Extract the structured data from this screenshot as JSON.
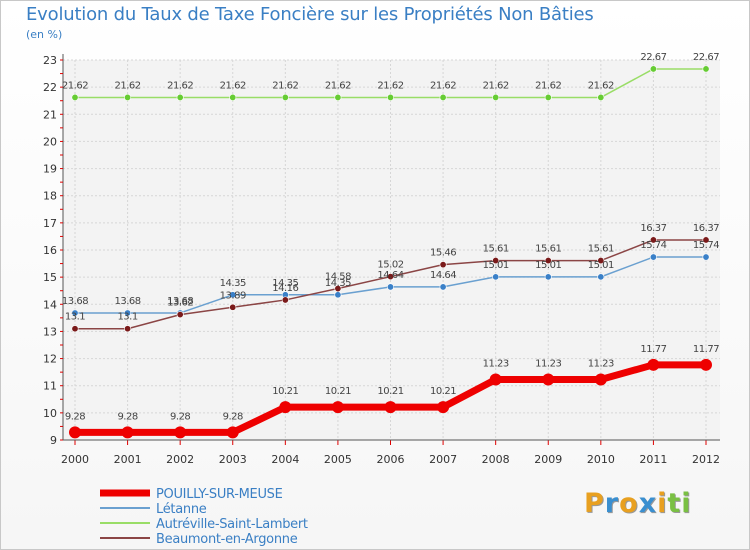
{
  "chart_data": {
    "type": "line",
    "title": "Evolution du Taux de Taxe Foncière sur les Propriétés Non Bâties",
    "ylabel": "(en %)",
    "xlabel": "",
    "ylim": [
      9,
      23
    ],
    "yticks": [
      "9",
      "10",
      "11",
      "12",
      "13",
      "14",
      "15",
      "16",
      "17",
      "18",
      "19",
      "20",
      "21",
      "22",
      "23"
    ],
    "categories": [
      "2000",
      "2001",
      "2002",
      "2003",
      "2004",
      "2005",
      "2006",
      "2007",
      "2008",
      "2009",
      "2010",
      "2011",
      "2012"
    ],
    "series": [
      {
        "name": "POUILLY-SUR-MEUSE",
        "color": "#ee0000",
        "markerColor": "#ee0000",
        "values": [
          9.28,
          9.28,
          9.28,
          9.28,
          10.21,
          10.21,
          10.21,
          10.21,
          11.23,
          11.23,
          11.23,
          11.77,
          11.77
        ],
        "labels": [
          "9.28",
          "9.28",
          "9.28",
          "9.28",
          "10.21",
          "10.21",
          "10.21",
          "10.21",
          "11.23",
          "11.23",
          "11.23",
          "11.77",
          "11.77"
        ]
      },
      {
        "name": "Létanne",
        "color": "#6aa0d0",
        "markerColor": "#3a80c8",
        "values": [
          13.68,
          13.68,
          13.68,
          14.35,
          14.35,
          14.35,
          14.64,
          14.64,
          15.01,
          15.01,
          15.01,
          15.74,
          15.74
        ],
        "labels": [
          "13.68",
          "13.68",
          "13.68",
          "14.35",
          "14.35",
          "14.35",
          "14.64",
          "14.64",
          "15.01",
          "15.01",
          "15.01",
          "15.74",
          "15.74"
        ]
      },
      {
        "name": "Autréville-Saint-Lambert",
        "color": "#99dd66",
        "markerColor": "#66cc33",
        "values": [
          21.62,
          21.62,
          21.62,
          21.62,
          21.62,
          21.62,
          21.62,
          21.62,
          21.62,
          21.62,
          21.62,
          22.67,
          22.67
        ],
        "labels": [
          "21.62",
          "21.62",
          "21.62",
          "21.62",
          "21.62",
          "21.62",
          "21.62",
          "21.62",
          "21.62",
          "21.62",
          "21.62",
          "22.67",
          "22.67"
        ]
      },
      {
        "name": "Beaumont-en-Argonne",
        "color": "#8b4545",
        "markerColor": "#7a1a1a",
        "values": [
          13.1,
          13.1,
          13.62,
          13.89,
          14.16,
          14.58,
          15.02,
          15.46,
          15.61,
          15.61,
          15.61,
          16.37,
          16.37
        ],
        "labels": [
          "13.1",
          "13.1",
          "13.62",
          "13.89",
          "14.16",
          "14.58",
          "15.02",
          "15.46",
          "15.61",
          "15.61",
          "15.61",
          "16.37",
          "16.37"
        ]
      }
    ],
    "legend": {
      "position": "bottom-left",
      "entries": [
        "POUILLY-SUR-MEUSE",
        "Létanne",
        "Autréville-Saint-Lambert",
        "Beaumont-en-Argonne"
      ]
    }
  },
  "logo": {
    "letters": [
      "P",
      "r",
      "o",
      "x",
      "i",
      "t",
      "i"
    ],
    "colors": [
      "#e8a020",
      "#3a8fd0",
      "#e8a020",
      "#3a8fd0",
      "#e8a020",
      "#7ac043",
      "#7ac043"
    ]
  }
}
